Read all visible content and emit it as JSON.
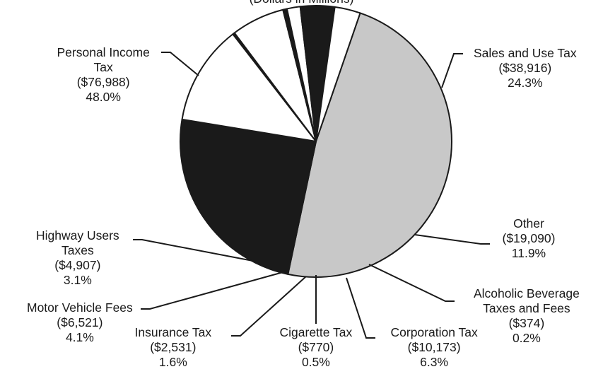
{
  "chart_data": {
    "type": "pie",
    "subtitle": "(Dollars in Millions)",
    "slices": [
      {
        "key": "personal",
        "label": [
          "Personal Income",
          "Tax"
        ],
        "amount": "($76,988)",
        "value": 76988,
        "percent": "48.0%",
        "color": "#c8c8c8"
      },
      {
        "key": "sales",
        "label": [
          "Sales and Use Tax"
        ],
        "amount": "($38,916)",
        "value": 38916,
        "percent": "24.3%",
        "color": "#1a1a1a"
      },
      {
        "key": "other",
        "label": [
          "Other"
        ],
        "amount": "($19,090)",
        "value": 19090,
        "percent": "11.9%",
        "color": "#ffffff"
      },
      {
        "key": "alcohol",
        "label": [
          "Alcoholic Beverage",
          "Taxes and Fees"
        ],
        "amount": "($374)",
        "value": 374,
        "percent": "0.2%",
        "color": "#1a1a1a"
      },
      {
        "key": "corporation",
        "label": [
          "Corporation Tax"
        ],
        "amount": "($10,173)",
        "value": 10173,
        "percent": "6.3%",
        "color": "#ffffff"
      },
      {
        "key": "cigarette",
        "label": [
          "Cigarette Tax"
        ],
        "amount": "($770)",
        "value": 770,
        "percent": "0.5%",
        "color": "#1a1a1a"
      },
      {
        "key": "insurance",
        "label": [
          "Insurance Tax"
        ],
        "amount": "($2,531)",
        "value": 2531,
        "percent": "1.6%",
        "color": "#ffffff"
      },
      {
        "key": "motor",
        "label": [
          "Motor Vehicle Fees"
        ],
        "amount": "($6,521)",
        "value": 6521,
        "percent": "4.1%",
        "color": "#1a1a1a"
      },
      {
        "key": "highway",
        "label": [
          "Highway Users",
          "Taxes"
        ],
        "amount": "($4,907)",
        "value": 4907,
        "percent": "3.1%",
        "color": "#ffffff"
      }
    ]
  }
}
